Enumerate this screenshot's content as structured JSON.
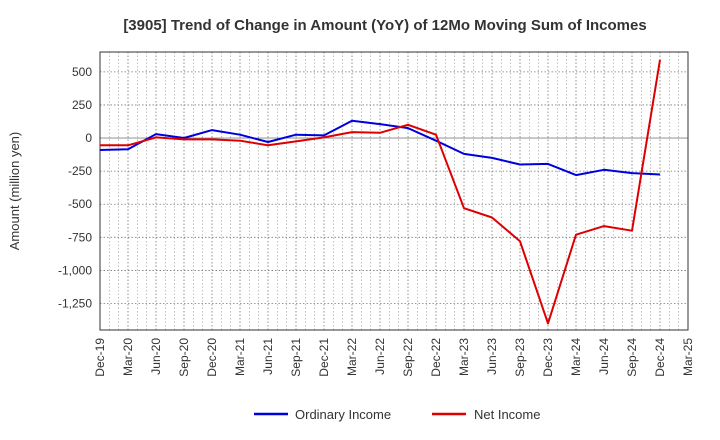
{
  "chart_data": {
    "type": "line",
    "title": "[3905]  Trend of Change in Amount (YoY) of 12Mo Moving Sum of Incomes",
    "ylabel": "Amount (million yen)",
    "xlabel": "",
    "ylim": [
      -1450,
      650
    ],
    "yticks": [
      500,
      250,
      0,
      -250,
      -500,
      -750,
      -1000,
      -1250
    ],
    "ytick_labels": [
      "500",
      "250",
      "0",
      "-250",
      "-500",
      "-750",
      "-1,000",
      "-1,250"
    ],
    "categories": [
      "Dec-19",
      "Mar-20",
      "Jun-20",
      "Sep-20",
      "Dec-20",
      "Mar-21",
      "Jun-21",
      "Sep-21",
      "Dec-21",
      "Mar-22",
      "Jun-22",
      "Sep-22",
      "Dec-22",
      "Mar-23",
      "Jun-23",
      "Sep-23",
      "Dec-23",
      "Mar-24",
      "Jun-24",
      "Sep-24",
      "Dec-24",
      "Mar-25"
    ],
    "grid": true,
    "legend_position": "bottom",
    "series": [
      {
        "name": "Ordinary Income",
        "color": "#0000dd",
        "values": [
          -90,
          -85,
          30,
          0,
          60,
          25,
          -30,
          25,
          20,
          130,
          105,
          75,
          -20,
          -120,
          -150,
          -200,
          -195,
          -280,
          -240,
          -265,
          -275,
          null
        ]
      },
      {
        "name": "Net Income",
        "color": "#dd0000",
        "values": [
          -55,
          -55,
          5,
          -10,
          -10,
          -20,
          -55,
          -25,
          5,
          45,
          40,
          100,
          25,
          -530,
          -600,
          -780,
          -1400,
          -730,
          -665,
          -700,
          590,
          null
        ]
      }
    ]
  }
}
